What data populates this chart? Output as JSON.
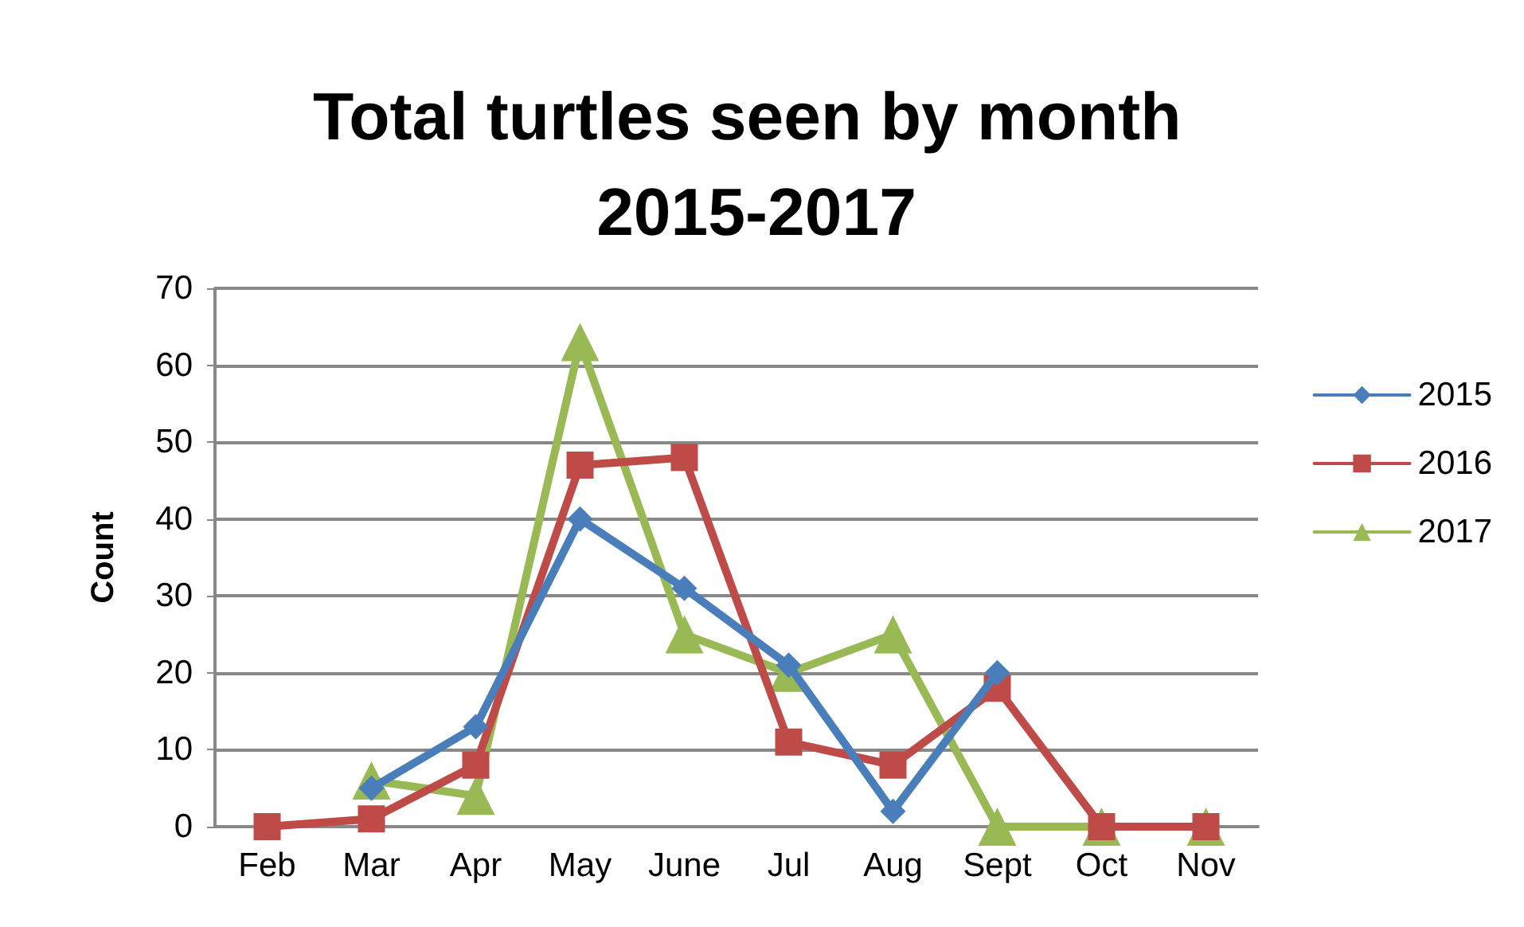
{
  "chart_data": {
    "type": "line",
    "title": "Total turtles seen by month 2015-2017",
    "ylabel": "Count",
    "categories": [
      "Feb",
      "Mar",
      "Apr",
      "May",
      "June",
      "Jul",
      "Aug",
      "Sept",
      "Oct",
      "Nov"
    ],
    "series": [
      {
        "name": "2015",
        "color": "#4a7ebb",
        "marker": "diamond",
        "values": [
          null,
          5,
          13,
          40,
          31,
          21,
          2,
          20,
          null,
          null
        ]
      },
      {
        "name": "2016",
        "color": "#be4b48",
        "marker": "square",
        "values": [
          0,
          1,
          8,
          47,
          48,
          11,
          8,
          18,
          0,
          0
        ]
      },
      {
        "name": "2017",
        "color": "#98b954",
        "marker": "triangle",
        "values": [
          null,
          6,
          4,
          63,
          25,
          20,
          25,
          0,
          0,
          0
        ]
      }
    ],
    "ylim": [
      0,
      70
    ],
    "yticks": [
      0,
      10,
      20,
      30,
      40,
      50,
      60,
      70
    ],
    "grid": "y",
    "legend": "right",
    "line_style": "solid"
  }
}
